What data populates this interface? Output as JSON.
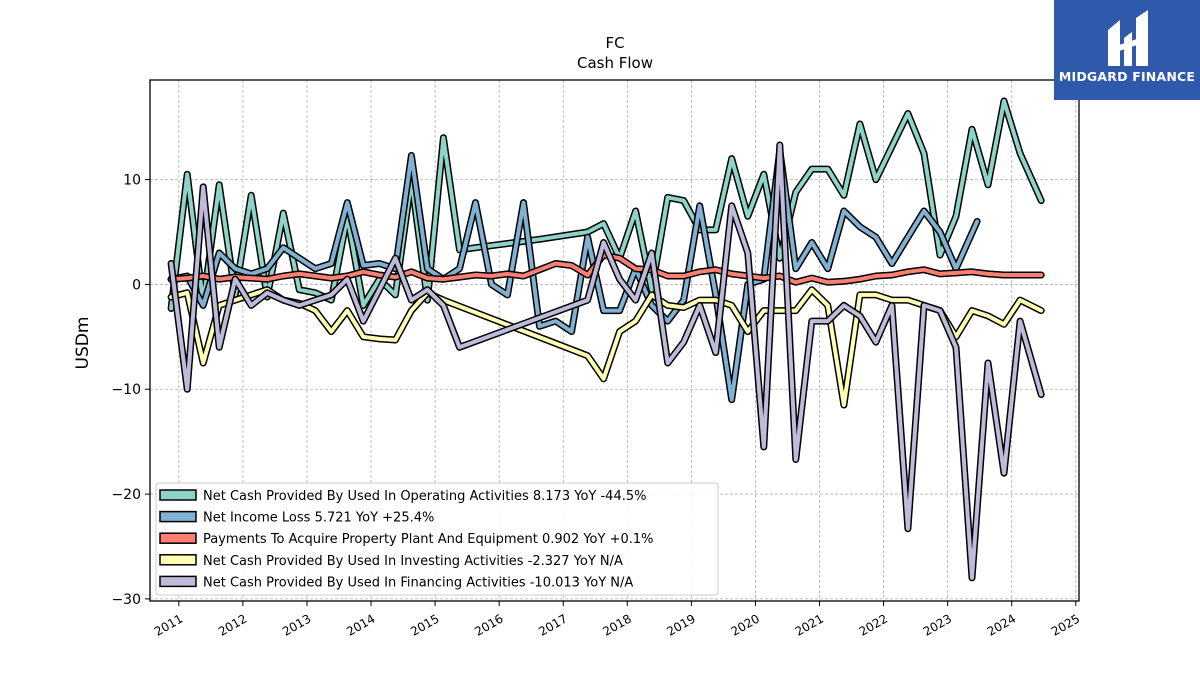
{
  "logo": {
    "text": "MIDGARD FINANCE",
    "icon": "midgard-logo-icon",
    "color": "#2f5aab"
  },
  "chart_data": {
    "type": "line",
    "title": "FC",
    "subtitle": "Cash Flow",
    "ylabel": "USDm",
    "xlabel": "",
    "xlim": [
      2010.55,
      2025.05
    ],
    "ylim": [
      -30.2,
      19.5
    ],
    "yticks": [
      -30,
      -20,
      -10,
      0,
      10
    ],
    "ytick_labels": [
      "−30",
      "−20",
      "−10",
      "0",
      "10"
    ],
    "xticks": [
      2011,
      2012,
      2013,
      2014,
      2015,
      2016,
      2017,
      2018,
      2019,
      2020,
      2021,
      2022,
      2023,
      2024,
      2025
    ],
    "xtick_labels": [
      "2011",
      "2012",
      "2013",
      "2014",
      "2015",
      "2016",
      "2017",
      "2018",
      "2019",
      "2020",
      "2021",
      "2022",
      "2023",
      "2024",
      "2025"
    ],
    "grid": true,
    "legend_position": "lower-left",
    "series": [
      {
        "name": "Net Cash Provided By Used In Operating Activities",
        "legend": "Net Cash Provided By Used In Operating Activities  8.173 YoY -44.5%",
        "color": "#8dd3c7",
        "points": [
          [
            2010.88,
            -2.3
          ],
          [
            2011.13,
            10.5
          ],
          [
            2011.38,
            -1.8
          ],
          [
            2011.63,
            9.5
          ],
          [
            2011.88,
            -1.0
          ],
          [
            2012.13,
            8.5
          ],
          [
            2012.38,
            -1.2
          ],
          [
            2012.63,
            6.8
          ],
          [
            2012.88,
            -0.5
          ],
          [
            2013.13,
            -0.8
          ],
          [
            2013.38,
            -1.5
          ],
          [
            2013.63,
            6.5
          ],
          [
            2013.88,
            -2.0
          ],
          [
            2014.13,
            0.5
          ],
          [
            2014.38,
            -1.0
          ],
          [
            2014.63,
            10.0
          ],
          [
            2014.88,
            -1.5
          ],
          [
            2015.13,
            14.0
          ],
          [
            2015.38,
            3.3
          ],
          [
            2016.63,
            4.3
          ],
          [
            2017.38,
            5.0
          ],
          [
            2017.63,
            5.8
          ],
          [
            2017.88,
            2.5
          ],
          [
            2018.13,
            7.0
          ],
          [
            2018.38,
            -0.5
          ],
          [
            2018.63,
            8.3
          ],
          [
            2018.88,
            8.0
          ],
          [
            2019.13,
            5.2
          ],
          [
            2019.38,
            5.2
          ],
          [
            2019.63,
            12.0
          ],
          [
            2019.88,
            6.5
          ],
          [
            2020.13,
            10.5
          ],
          [
            2020.38,
            2.5
          ],
          [
            2020.63,
            8.8
          ],
          [
            2020.88,
            11.0
          ],
          [
            2021.13,
            11.0
          ],
          [
            2021.38,
            8.5
          ],
          [
            2021.63,
            15.3
          ],
          [
            2021.88,
            10.0
          ],
          [
            2022.38,
            16.3
          ],
          [
            2022.63,
            12.5
          ],
          [
            2022.88,
            2.8
          ],
          [
            2023.13,
            6.5
          ],
          [
            2023.38,
            14.8
          ],
          [
            2023.63,
            9.5
          ],
          [
            2023.88,
            17.5
          ],
          [
            2024.13,
            12.5
          ],
          [
            2024.46,
            8.0
          ]
        ]
      },
      {
        "name": "Net Income Loss",
        "legend": "Net Income Loss  5.721 YoY +25.4%",
        "color": "#80b1d3",
        "points": [
          [
            2010.88,
            0.5
          ],
          [
            2011.13,
            0.8
          ],
          [
            2011.38,
            -2.0
          ],
          [
            2011.63,
            3.0
          ],
          [
            2011.88,
            1.5
          ],
          [
            2012.13,
            1.0
          ],
          [
            2012.38,
            1.5
          ],
          [
            2012.63,
            3.5
          ],
          [
            2012.88,
            2.5
          ],
          [
            2013.13,
            1.5
          ],
          [
            2013.38,
            2.0
          ],
          [
            2013.63,
            7.8
          ],
          [
            2013.88,
            1.8
          ],
          [
            2014.13,
            2.0
          ],
          [
            2014.38,
            1.5
          ],
          [
            2014.63,
            12.3
          ],
          [
            2014.88,
            1.5
          ],
          [
            2015.13,
            0.5
          ],
          [
            2015.38,
            1.5
          ],
          [
            2015.63,
            7.8
          ],
          [
            2015.88,
            0.0
          ],
          [
            2016.13,
            -1.0
          ],
          [
            2016.38,
            7.8
          ],
          [
            2016.63,
            -4.0
          ],
          [
            2016.88,
            -3.5
          ],
          [
            2017.13,
            -4.5
          ],
          [
            2017.38,
            4.5
          ],
          [
            2017.63,
            -2.5
          ],
          [
            2017.88,
            -2.5
          ],
          [
            2018.13,
            1.5
          ],
          [
            2018.38,
            -2.0
          ],
          [
            2018.63,
            -3.5
          ],
          [
            2018.88,
            -1.5
          ],
          [
            2019.13,
            7.5
          ],
          [
            2019.38,
            -1.0
          ],
          [
            2019.63,
            -11.0
          ],
          [
            2019.88,
            0.0
          ],
          [
            2020.13,
            0.5
          ],
          [
            2020.38,
            12.8
          ],
          [
            2020.63,
            1.5
          ],
          [
            2020.88,
            4.0
          ],
          [
            2021.13,
            1.5
          ],
          [
            2021.38,
            7.0
          ],
          [
            2021.63,
            5.5
          ],
          [
            2021.88,
            4.5
          ],
          [
            2022.13,
            2.0
          ],
          [
            2022.38,
            4.5
          ],
          [
            2022.63,
            7.0
          ],
          [
            2022.88,
            5.0
          ],
          [
            2023.13,
            1.5
          ],
          [
            2023.46,
            6.0
          ]
        ]
      },
      {
        "name": "Payments To Acquire Property Plant And Equipment",
        "legend": "Payments To Acquire Property Plant And Equipment  0.902 YoY +0.1%",
        "color": "#fb8072",
        "points": [
          [
            2010.88,
            0.5
          ],
          [
            2011.13,
            0.6
          ],
          [
            2011.38,
            0.8
          ],
          [
            2011.63,
            0.5
          ],
          [
            2011.88,
            0.7
          ],
          [
            2012.13,
            0.6
          ],
          [
            2012.38,
            0.5
          ],
          [
            2012.63,
            0.8
          ],
          [
            2012.88,
            1.0
          ],
          [
            2013.13,
            0.8
          ],
          [
            2013.38,
            0.6
          ],
          [
            2013.63,
            0.8
          ],
          [
            2013.88,
            1.2
          ],
          [
            2014.13,
            0.9
          ],
          [
            2014.38,
            0.7
          ],
          [
            2014.63,
            1.2
          ],
          [
            2014.88,
            0.6
          ],
          [
            2015.13,
            0.5
          ],
          [
            2015.38,
            0.7
          ],
          [
            2015.63,
            0.9
          ],
          [
            2015.88,
            0.8
          ],
          [
            2016.13,
            1.0
          ],
          [
            2016.38,
            0.8
          ],
          [
            2016.63,
            1.4
          ],
          [
            2016.88,
            2.0
          ],
          [
            2017.13,
            1.8
          ],
          [
            2017.38,
            0.9
          ],
          [
            2017.63,
            2.8
          ],
          [
            2017.88,
            2.5
          ],
          [
            2018.13,
            1.5
          ],
          [
            2018.38,
            1.4
          ],
          [
            2018.63,
            0.8
          ],
          [
            2018.88,
            0.8
          ],
          [
            2019.13,
            1.2
          ],
          [
            2019.38,
            1.4
          ],
          [
            2019.63,
            1.0
          ],
          [
            2019.88,
            0.8
          ],
          [
            2020.13,
            0.6
          ],
          [
            2020.38,
            0.8
          ],
          [
            2020.63,
            0.2
          ],
          [
            2020.88,
            0.6
          ],
          [
            2021.13,
            0.2
          ],
          [
            2021.38,
            0.3
          ],
          [
            2021.63,
            0.5
          ],
          [
            2021.88,
            0.8
          ],
          [
            2022.13,
            0.9
          ],
          [
            2022.38,
            1.2
          ],
          [
            2022.63,
            1.4
          ],
          [
            2022.88,
            1.0
          ],
          [
            2023.13,
            1.1
          ],
          [
            2023.38,
            1.2
          ],
          [
            2023.63,
            1.0
          ],
          [
            2023.88,
            0.9
          ],
          [
            2024.46,
            0.9
          ]
        ]
      },
      {
        "name": "Net Cash Provided By Used In Investing Activities",
        "legend": "Net Cash Provided By Used In Investing Activities  -2.327 YoY N/A",
        "color": "#ffffb3",
        "points": [
          [
            2010.88,
            -1.2
          ],
          [
            2011.13,
            -0.8
          ],
          [
            2011.38,
            -7.5
          ],
          [
            2011.63,
            -2.0
          ],
          [
            2011.88,
            -1.5
          ],
          [
            2012.13,
            -1.0
          ],
          [
            2012.38,
            -0.5
          ],
          [
            2012.63,
            -1.5
          ],
          [
            2012.88,
            -1.8
          ],
          [
            2013.13,
            -2.5
          ],
          [
            2013.38,
            -4.5
          ],
          [
            2013.63,
            -2.5
          ],
          [
            2013.88,
            -5.0
          ],
          [
            2014.13,
            -5.2
          ],
          [
            2014.38,
            -5.3
          ],
          [
            2014.63,
            -2.5
          ],
          [
            2014.88,
            -0.8
          ],
          [
            2015.13,
            -1.5
          ],
          [
            2017.38,
            -6.8
          ],
          [
            2017.63,
            -9.0
          ],
          [
            2017.88,
            -4.5
          ],
          [
            2018.13,
            -3.5
          ],
          [
            2018.38,
            -1.0
          ],
          [
            2018.63,
            -2.0
          ],
          [
            2018.88,
            -2.2
          ],
          [
            2019.13,
            -1.5
          ],
          [
            2019.38,
            -1.5
          ],
          [
            2019.63,
            -2.0
          ],
          [
            2019.88,
            -4.5
          ],
          [
            2020.13,
            -2.5
          ],
          [
            2020.38,
            -2.5
          ],
          [
            2020.63,
            -2.5
          ],
          [
            2020.88,
            -0.5
          ],
          [
            2021.13,
            -2.0
          ],
          [
            2021.38,
            -11.5
          ],
          [
            2021.63,
            -1.0
          ],
          [
            2021.88,
            -1.0
          ],
          [
            2022.13,
            -1.5
          ],
          [
            2022.38,
            -1.5
          ],
          [
            2022.63,
            -2.0
          ],
          [
            2022.88,
            -2.5
          ],
          [
            2023.13,
            -5.0
          ],
          [
            2023.38,
            -2.5
          ],
          [
            2023.63,
            -3.0
          ],
          [
            2023.88,
            -3.8
          ],
          [
            2024.13,
            -1.5
          ],
          [
            2024.46,
            -2.5
          ]
        ]
      },
      {
        "name": "Net Cash Provided By Used In Financing Activities",
        "legend": "Net Cash Provided By Used In Financing Activities  -10.013 YoY N/A",
        "color": "#bebada",
        "points": [
          [
            2010.88,
            2.0
          ],
          [
            2011.13,
            -10.0
          ],
          [
            2011.38,
            9.3
          ],
          [
            2011.63,
            -6.0
          ],
          [
            2011.88,
            0.5
          ],
          [
            2012.13,
            -2.0
          ],
          [
            2012.38,
            -0.8
          ],
          [
            2012.63,
            -1.5
          ],
          [
            2012.88,
            -2.0
          ],
          [
            2013.13,
            -1.5
          ],
          [
            2013.38,
            -1.0
          ],
          [
            2013.63,
            0.5
          ],
          [
            2013.88,
            -3.5
          ],
          [
            2014.13,
            -0.5
          ],
          [
            2014.38,
            2.5
          ],
          [
            2014.63,
            -1.5
          ],
          [
            2014.88,
            -0.5
          ],
          [
            2015.13,
            -2.0
          ],
          [
            2015.38,
            -6.0
          ],
          [
            2017.38,
            -1.5
          ],
          [
            2017.63,
            4.0
          ],
          [
            2017.88,
            0.5
          ],
          [
            2018.13,
            -1.5
          ],
          [
            2018.38,
            3.0
          ],
          [
            2018.63,
            -7.5
          ],
          [
            2018.88,
            -5.5
          ],
          [
            2019.13,
            -2.0
          ],
          [
            2019.38,
            -6.5
          ],
          [
            2019.63,
            7.5
          ],
          [
            2019.88,
            3.0
          ],
          [
            2020.13,
            -15.5
          ],
          [
            2020.38,
            13.3
          ],
          [
            2020.63,
            -16.7
          ],
          [
            2020.88,
            -3.5
          ],
          [
            2021.13,
            -3.5
          ],
          [
            2021.38,
            -2.0
          ],
          [
            2021.63,
            -3.0
          ],
          [
            2021.88,
            -5.5
          ],
          [
            2022.13,
            -2.0
          ],
          [
            2022.38,
            -23.3
          ],
          [
            2022.63,
            -2.0
          ],
          [
            2022.88,
            -2.5
          ],
          [
            2023.13,
            -6.0
          ],
          [
            2023.38,
            -28.0
          ],
          [
            2023.63,
            -7.5
          ],
          [
            2023.88,
            -18.0
          ],
          [
            2024.13,
            -3.5
          ],
          [
            2024.46,
            -10.5
          ]
        ]
      }
    ]
  }
}
